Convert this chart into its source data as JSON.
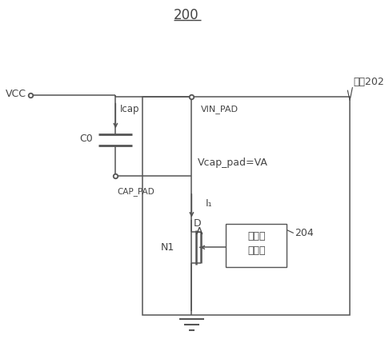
{
  "title": "200",
  "chip_label": "芯片202",
  "module_label": "栅压控\n制模块",
  "module_number": "204",
  "labels": {
    "VCC": "VCC",
    "Icap": "Icap",
    "C0": "C0",
    "CAP_PAD": "CAP_PAD",
    "VIN_PAD": "VIN_PAD",
    "Vcap": "Vcap_pad=VA",
    "I1": "I₁",
    "A": "A",
    "N1": "N1",
    "D": "D"
  },
  "bg_color": "#ffffff",
  "line_color": "#555555",
  "text_color": "#444444",
  "figsize": [
    4.86,
    4.29
  ],
  "dpi": 100
}
